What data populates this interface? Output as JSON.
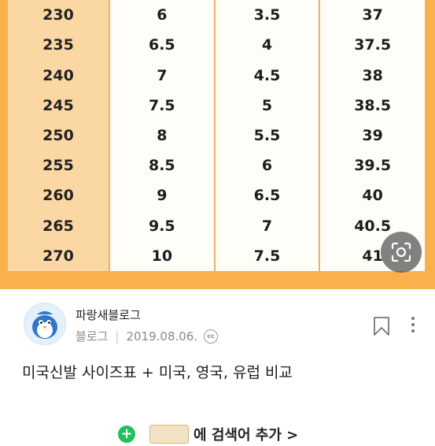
{
  "size_table": {
    "rows": [
      [
        "230",
        "6",
        "3.5",
        "37"
      ],
      [
        "235",
        "6.5",
        "4",
        "37.5"
      ],
      [
        "240",
        "7",
        "4.5",
        "38"
      ],
      [
        "245",
        "7.5",
        "5",
        "38.5"
      ],
      [
        "250",
        "8",
        "5.5",
        "39"
      ],
      [
        "255",
        "8.5",
        "6",
        "39.5"
      ],
      [
        "260",
        "9",
        "6.5",
        "40"
      ],
      [
        "265",
        "9.5",
        "7",
        "40.5"
      ],
      [
        "270",
        "10",
        "7.5",
        "41"
      ]
    ]
  },
  "blog": {
    "name": "파랑새블로그",
    "category": "블로그",
    "date": "2019.08.06.",
    "cc_label": "cc"
  },
  "post": {
    "title": "미국신발 사이즈표 + 미국, 영국, 유럽 비교"
  },
  "keyword_bar": {
    "add_label": "+",
    "text": "에 검색어 추가 >"
  },
  "icons": {
    "scan": "scan-text-icon",
    "bookmark": "bookmark-icon",
    "more": "more-vertical-icon",
    "license": "creative-commons-icon"
  },
  "colors": {
    "table_frame": "#f8b14c",
    "korean_column": "#fbd7a4",
    "add_button": "#20c05c"
  }
}
